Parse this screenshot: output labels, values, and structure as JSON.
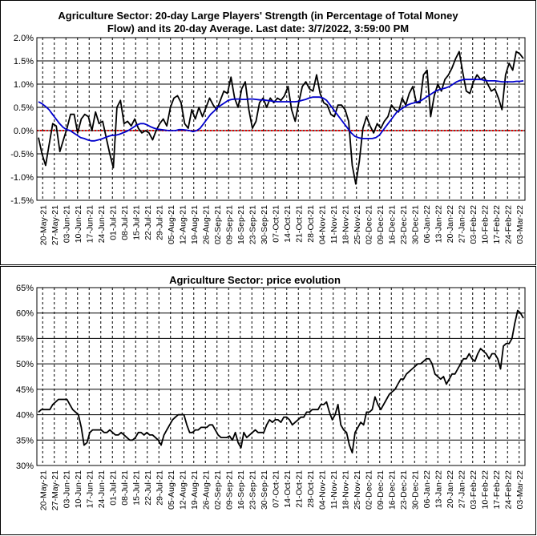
{
  "dates": [
    "20-May-21",
    "27-May-21",
    "03-Jun-21",
    "10-Jun-21",
    "17-Jun-21",
    "24-Jun-21",
    "01-Jul-21",
    "08-Jul-21",
    "15-Jul-21",
    "22-Jul-21",
    "29-Jul-21",
    "05-Aug-21",
    "12-Aug-21",
    "19-Aug-21",
    "26-Aug-21",
    "02-Sep-21",
    "09-Sep-21",
    "16-Sep-21",
    "23-Sep-21",
    "30-Sep-21",
    "07-Oct-21",
    "14-Oct-21",
    "21-Oct-21",
    "28-Oct-21",
    "04-Nov-21",
    "11-Nov-21",
    "18-Nov-21",
    "25-Nov-21",
    "02-Dec-21",
    "09-Dec-21",
    "16-Dec-21",
    "23-Dec-21",
    "30-Dec-21",
    "06-Jan-22",
    "13-Jan-22",
    "20-Jan-22",
    "27-Jan-22",
    "03-Feb-22",
    "10-Feb-22",
    "17-Feb-22",
    "24-Feb-22",
    "03-Mar-22"
  ],
  "chart_data": [
    {
      "type": "line",
      "title": "Agriculture Sector: 20-day Large Players' Strength (in Percentage of Total Money Flow) and its 20-day Average. Last date: 3/7/2022, 3:59:00 PM",
      "title_lines": [
        "Agriculture Sector: 20-day Large Players' Strength (in Percentage of Total Money",
        "Flow) and its 20-day Average. Last date: 3/7/2022, 3:59:00 PM"
      ],
      "ylim": [
        -1.5,
        2.0
      ],
      "yticks": [
        2.0,
        1.5,
        1.0,
        0.5,
        0.0,
        -0.5,
        -1.0,
        -1.5
      ],
      "ytick_labels": [
        "2.0%",
        "1.5%",
        "1.0%",
        "0.5%",
        "0.0%",
        "-0.5%",
        "-1.0%",
        "-1.5%"
      ],
      "grid": true,
      "reference_line": {
        "y": 0.0,
        "color": "#e00000",
        "style": "dotted"
      },
      "series": [
        {
          "color": "#000000",
          "values": [
            -0.15,
            -0.5,
            -0.75,
            -0.3,
            0.15,
            0.1,
            -0.45,
            -0.2,
            0.05,
            0.35,
            0.35,
            -0.05,
            0.25,
            0.35,
            0.3,
            0.0,
            0.4,
            0.15,
            0.2,
            -0.15,
            -0.5,
            -0.8,
            0.5,
            0.65,
            0.15,
            0.2,
            0.1,
            0.25,
            0.05,
            -0.05,
            0.0,
            -0.05,
            -0.2,
            0.0,
            0.15,
            0.25,
            0.1,
            0.5,
            0.7,
            0.75,
            0.6,
            0.15,
            0.05,
            0.45,
            0.25,
            0.5,
            0.3,
            0.5,
            0.7,
            0.55,
            0.45,
            0.65,
            0.85,
            0.8,
            1.15,
            0.7,
            0.5,
            0.9,
            1.05,
            0.45,
            0.05,
            0.2,
            0.6,
            0.7,
            0.5,
            0.7,
            0.6,
            0.7,
            0.65,
            0.75,
            0.95,
            0.45,
            0.2,
            0.6,
            0.95,
            1.05,
            0.9,
            0.85,
            1.2,
            0.8,
            0.6,
            0.55,
            0.35,
            0.3,
            0.55,
            0.55,
            0.45,
            0.2,
            -0.75,
            -1.15,
            -0.65,
            0.05,
            0.3,
            0.1,
            -0.05,
            0.15,
            0.05,
            0.2,
            0.3,
            0.55,
            0.45,
            0.4,
            0.7,
            0.55,
            0.8,
            0.95,
            0.6,
            0.6,
            1.2,
            1.3,
            0.3,
            0.75,
            1.0,
            0.85,
            1.1,
            1.2,
            1.35,
            1.55,
            1.7,
            1.25,
            0.85,
            0.8,
            1.05,
            1.2,
            1.1,
            1.15,
            1.0,
            0.85,
            0.9,
            0.7,
            0.45,
            1.2,
            1.45,
            1.3,
            1.7,
            1.65,
            1.55
          ]
        },
        {
          "color": "#0000cc",
          "values": [
            0.62,
            0.58,
            0.52,
            0.45,
            0.35,
            0.25,
            0.15,
            0.07,
            0.02,
            0.0,
            -0.05,
            -0.1,
            -0.15,
            -0.17,
            -0.2,
            -0.22,
            -0.22,
            -0.2,
            -0.18,
            -0.15,
            -0.12,
            -0.1,
            -0.1,
            -0.08,
            -0.05,
            -0.02,
            0.02,
            0.07,
            0.12,
            0.15,
            0.15,
            0.12,
            0.08,
            0.05,
            0.03,
            0.02,
            0.01,
            0.0,
            0.0,
            0.0,
            0.02,
            0.02,
            0.01,
            0.0,
            -0.02,
            0.0,
            0.05,
            0.15,
            0.25,
            0.35,
            0.42,
            0.5,
            0.55,
            0.6,
            0.65,
            0.67,
            0.68,
            0.68,
            0.67,
            0.67,
            0.68,
            0.68,
            0.67,
            0.66,
            0.66,
            0.65,
            0.64,
            0.63,
            0.62,
            0.62,
            0.62,
            0.62,
            0.62,
            0.62,
            0.63,
            0.65,
            0.67,
            0.7,
            0.72,
            0.72,
            0.72,
            0.7,
            0.65,
            0.55,
            0.45,
            0.35,
            0.25,
            0.15,
            0.05,
            -0.05,
            -0.12,
            -0.15,
            -0.17,
            -0.17,
            -0.17,
            -0.17,
            -0.15,
            -0.1,
            0.0,
            0.1,
            0.2,
            0.3,
            0.4,
            0.45,
            0.5,
            0.55,
            0.58,
            0.6,
            0.62,
            0.65,
            0.7,
            0.75,
            0.8,
            0.85,
            0.88,
            0.9,
            0.92,
            0.95,
            1.0,
            1.05,
            1.08,
            1.1,
            1.1,
            1.1,
            1.1,
            1.1,
            1.1,
            1.08,
            1.07,
            1.07,
            1.07,
            1.06,
            1.05,
            1.05,
            1.05,
            1.05,
            1.06,
            1.06,
            1.07
          ]
        }
      ]
    },
    {
      "type": "line",
      "title": "Agriculture Sector: price evolution",
      "ylim": [
        30,
        65
      ],
      "yticks": [
        65,
        60,
        55,
        50,
        45,
        40,
        35,
        30
      ],
      "ytick_labels": [
        "65%",
        "60%",
        "55%",
        "50%",
        "45%",
        "40%",
        "35%",
        "30%"
      ],
      "grid": true,
      "series": [
        {
          "color": "#000000",
          "values": [
            40.5,
            41,
            41,
            41,
            41,
            42,
            42.5,
            43,
            43,
            43,
            43,
            42,
            41,
            40.5,
            40,
            37.5,
            34,
            34.5,
            36.5,
            37,
            37,
            37,
            37,
            36.5,
            36.5,
            37,
            36.5,
            36,
            36,
            36.5,
            36,
            35.5,
            35,
            35,
            35.5,
            36.5,
            36.5,
            36,
            36.5,
            36,
            36,
            35.5,
            35,
            34,
            36,
            37,
            38,
            39,
            39.5,
            40,
            40,
            40,
            38,
            36.5,
            36.5,
            37,
            37,
            37.5,
            37.5,
            37.5,
            38,
            38,
            37,
            36,
            35.5,
            35.5,
            35.5,
            35.8,
            35,
            36.5,
            34.5,
            33.5,
            36.5,
            35.5,
            36,
            36.5,
            37,
            36.5,
            36.5,
            36.5,
            38,
            39,
            38.5,
            39,
            39,
            38.5,
            39.5,
            39.5,
            39,
            38,
            38.5,
            39,
            39.5,
            39.5,
            40.5,
            40.5,
            41,
            41,
            41,
            42,
            42,
            42.5,
            40.5,
            39,
            40,
            42,
            38,
            37,
            36.5,
            34,
            32.5,
            36.5,
            37.5,
            38.5,
            38,
            40.5,
            40.5,
            41,
            43.5,
            42,
            41,
            42,
            43,
            44,
            44.5,
            45,
            46,
            47,
            47,
            48,
            48.5,
            49,
            49.5,
            50,
            50,
            50.5,
            51,
            51,
            50,
            48,
            47.5,
            47,
            47.5,
            46,
            47,
            48,
            48,
            49,
            50,
            51,
            51,
            52,
            51,
            50.5,
            52,
            53,
            52.5,
            52,
            51,
            52,
            52,
            51,
            49,
            53.5,
            54,
            54,
            55,
            58,
            60.5,
            60,
            59
          ]
        }
      ]
    }
  ]
}
